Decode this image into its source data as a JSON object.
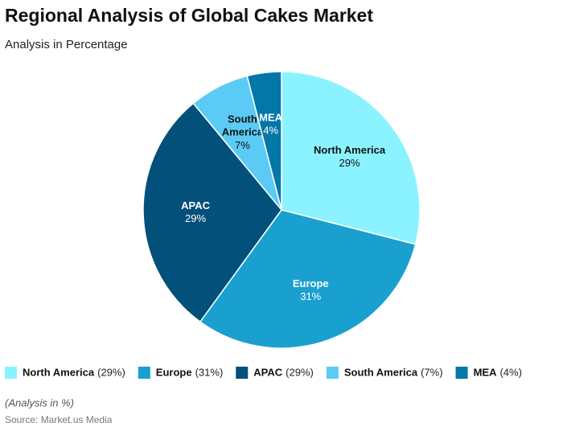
{
  "chart_data": {
    "type": "pie",
    "title": "Regional Analysis of Global Cakes Market",
    "subtitle": "Analysis in Percentage",
    "categories": [
      "North America",
      "Europe",
      "APAC",
      "South America",
      "MEA"
    ],
    "values": [
      29,
      31,
      29,
      7,
      4
    ],
    "value_labels": [
      "29%",
      "31%",
      "29%",
      "7%",
      "4%"
    ],
    "legend_value_labels": [
      "(29%)",
      "(31%)",
      "(29%)",
      "(7%)",
      "(4%)"
    ],
    "colors": [
      "#8af3ff",
      "#1aa0cf",
      "#03507a",
      "#5bcbf5",
      "#0377a8"
    ],
    "note": "(Analysis in %)",
    "source": "Source: Market.us Media"
  }
}
